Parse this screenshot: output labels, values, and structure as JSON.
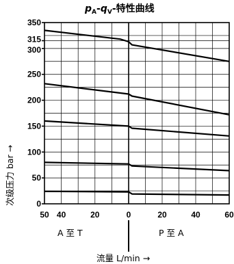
{
  "chart_data": {
    "type": "line",
    "title": {
      "p": "p",
      "p_sub": "A",
      "sep": "-",
      "q": "q",
      "q_sub": "V",
      "rest": "-特性曲线"
    },
    "ylabel": "次级压力 bar →",
    "xlabel": "流量 L/min →",
    "region_left": "A 至 T",
    "region_right": "P 至 A",
    "ylim": [
      0,
      350
    ],
    "y_ticks": [
      0,
      50,
      100,
      150,
      200,
      250,
      300,
      315,
      350
    ],
    "x_left_ticks": [
      "50",
      "40",
      "20",
      "0"
    ],
    "x_right_ticks": [
      "20",
      "40",
      "60"
    ],
    "x_left_range": [
      50,
      0
    ],
    "x_right_range": [
      0,
      60
    ],
    "grid": true,
    "series": [
      {
        "left": [
          [
            50,
            335
          ],
          [
            5,
            318
          ],
          [
            0,
            313
          ]
        ],
        "right": [
          [
            0,
            313
          ],
          [
            2,
            307
          ],
          [
            60,
            275
          ]
        ]
      },
      {
        "left": [
          [
            50,
            232
          ],
          [
            0,
            212
          ]
        ],
        "right": [
          [
            0,
            212
          ],
          [
            2,
            208
          ],
          [
            60,
            172
          ]
        ]
      },
      {
        "left": [
          [
            50,
            160
          ],
          [
            0,
            150
          ]
        ],
        "right": [
          [
            0,
            150
          ],
          [
            2,
            146
          ],
          [
            60,
            131
          ]
        ]
      },
      {
        "left": [
          [
            50,
            80
          ],
          [
            0,
            77
          ]
        ],
        "right": [
          [
            0,
            77
          ],
          [
            2,
            73
          ],
          [
            60,
            64
          ]
        ]
      },
      {
        "left": [
          [
            50,
            24
          ],
          [
            0,
            23
          ]
        ],
        "right": [
          [
            0,
            23
          ],
          [
            2,
            19
          ],
          [
            60,
            17
          ]
        ]
      }
    ]
  }
}
